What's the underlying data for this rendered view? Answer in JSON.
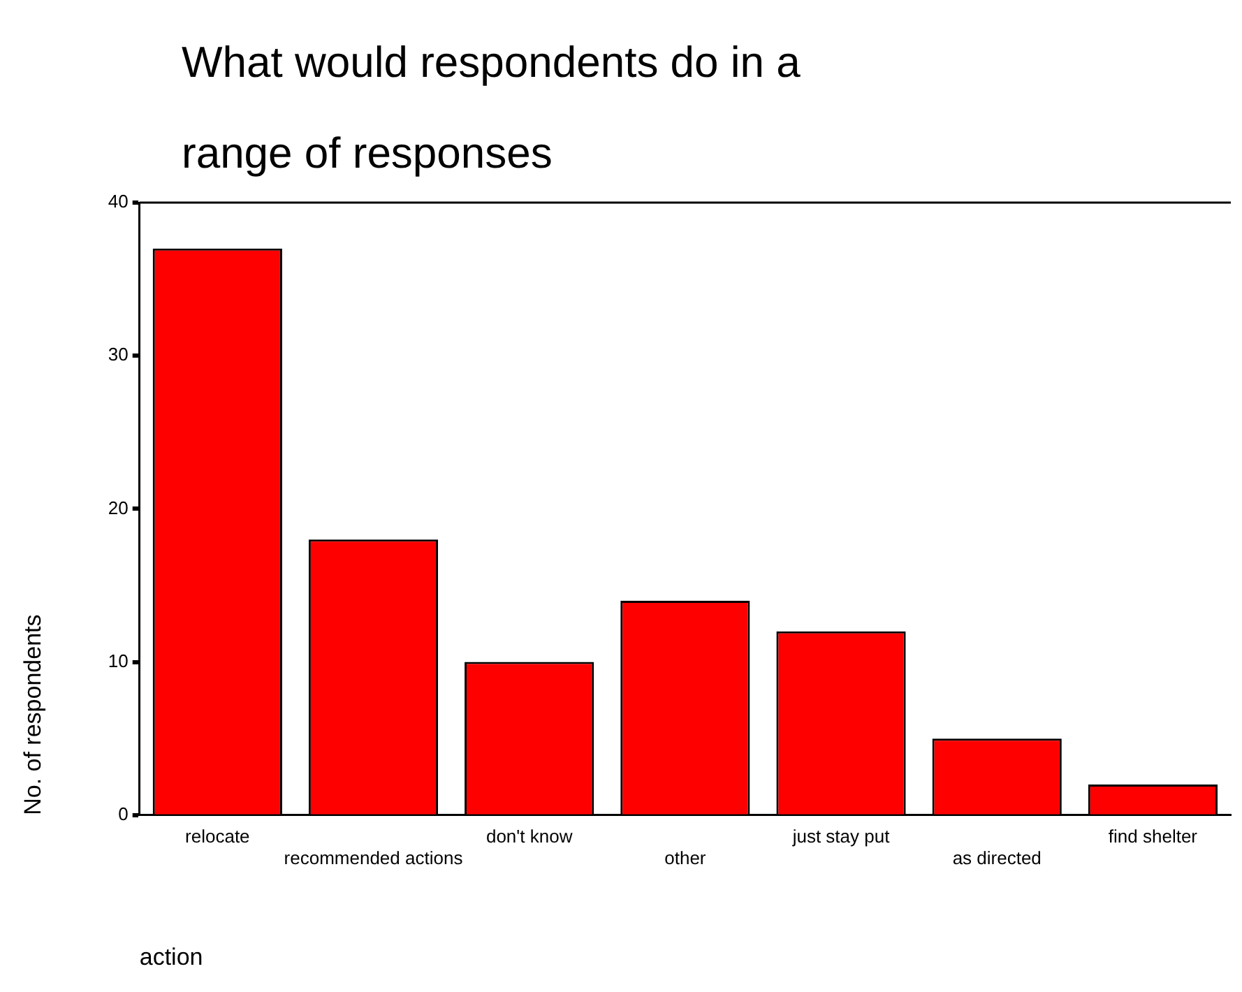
{
  "chart_data": {
    "type": "bar",
    "title": "What would respondents do in a range of responses",
    "xlabel": "action",
    "ylabel": "No. of respondents",
    "categories": [
      "relocate",
      "recommended actions",
      "don't know",
      "other",
      "just stay put",
      "as directed",
      "find shelter"
    ],
    "values": [
      37,
      18,
      10,
      14,
      12,
      5,
      2
    ],
    "color": "#ff0000",
    "ylim": [
      0,
      40
    ],
    "yticks": [
      0,
      10,
      20,
      30,
      40
    ],
    "grid": false,
    "legend": false
  }
}
